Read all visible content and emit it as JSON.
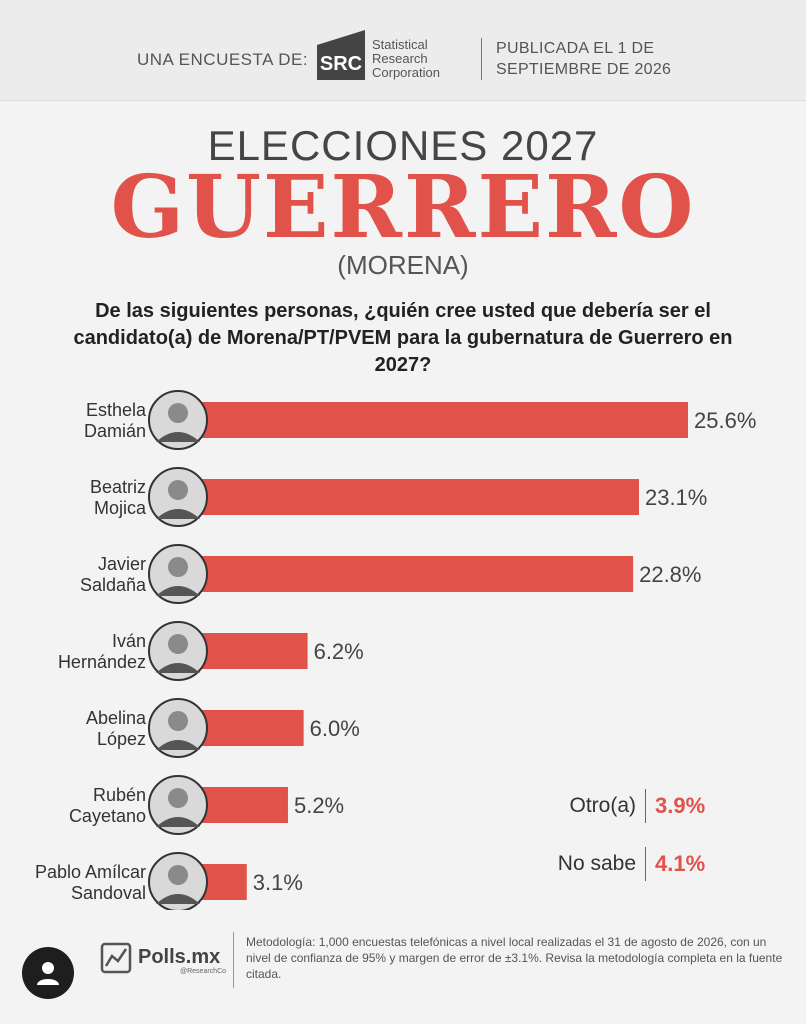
{
  "header": {
    "survey_label": "UNA ENCUESTA DE:",
    "logo_initials": "SRC",
    "pollster_line1": "Statistical",
    "pollster_line2": "Research",
    "pollster_line3": "Corporation",
    "published_line1": "PUBLICADA EL 1 DE",
    "published_line2": "SEPTIEMBRE DE 2026"
  },
  "titles": {
    "kicker": "ELECCIONES 2027",
    "main": "GUERRERO",
    "party": "(MORENA)",
    "question": "De las siguientes personas, ¿quién cree usted que debería ser el candidato(a) de Morena/PT/PVEM para la gubernatura de Guerrero en 2027?"
  },
  "chart_data": {
    "type": "bar",
    "orientation": "horizontal",
    "value_format": "{v}%",
    "grid": false,
    "categories": [
      [
        "Esthela",
        "Damián"
      ],
      [
        "Beatriz",
        "Mojica"
      ],
      [
        "Javier",
        "Saldaña"
      ],
      [
        "Iván",
        "Hernández"
      ],
      [
        "Abelina",
        "López"
      ],
      [
        "Rubén",
        "Cayetano"
      ],
      [
        "Pablo Amílcar",
        "Sandoval"
      ]
    ],
    "values": [
      25.6,
      23.1,
      22.8,
      6.2,
      6.0,
      5.2,
      3.1
    ],
    "data_labels": [
      "25.6%",
      "23.1%",
      "22.8%",
      "6.2%",
      "6.0%",
      "5.2%",
      "3.1%"
    ],
    "bar_color": "#e0524a",
    "extra": [
      {
        "label": "Otro(a)",
        "value": 3.9,
        "text": "3.9%"
      },
      {
        "label": "No sabe",
        "value": 4.1,
        "text": "4.1%"
      }
    ]
  },
  "footer": {
    "brand": "Polls.mx",
    "brand_sub": "@ResearchCo",
    "methodology": "Metodología: 1,000 encuestas telefónicas a nivel local realizadas el 31 de agosto de 2026, con un nivel de confianza de 95% y margen de error de ±3.1%. Revisa la metodología completa en la fuente citada."
  },
  "icons": {
    "avatar": "user-avatar-icon",
    "polls_logo": "chart-logo-icon"
  }
}
